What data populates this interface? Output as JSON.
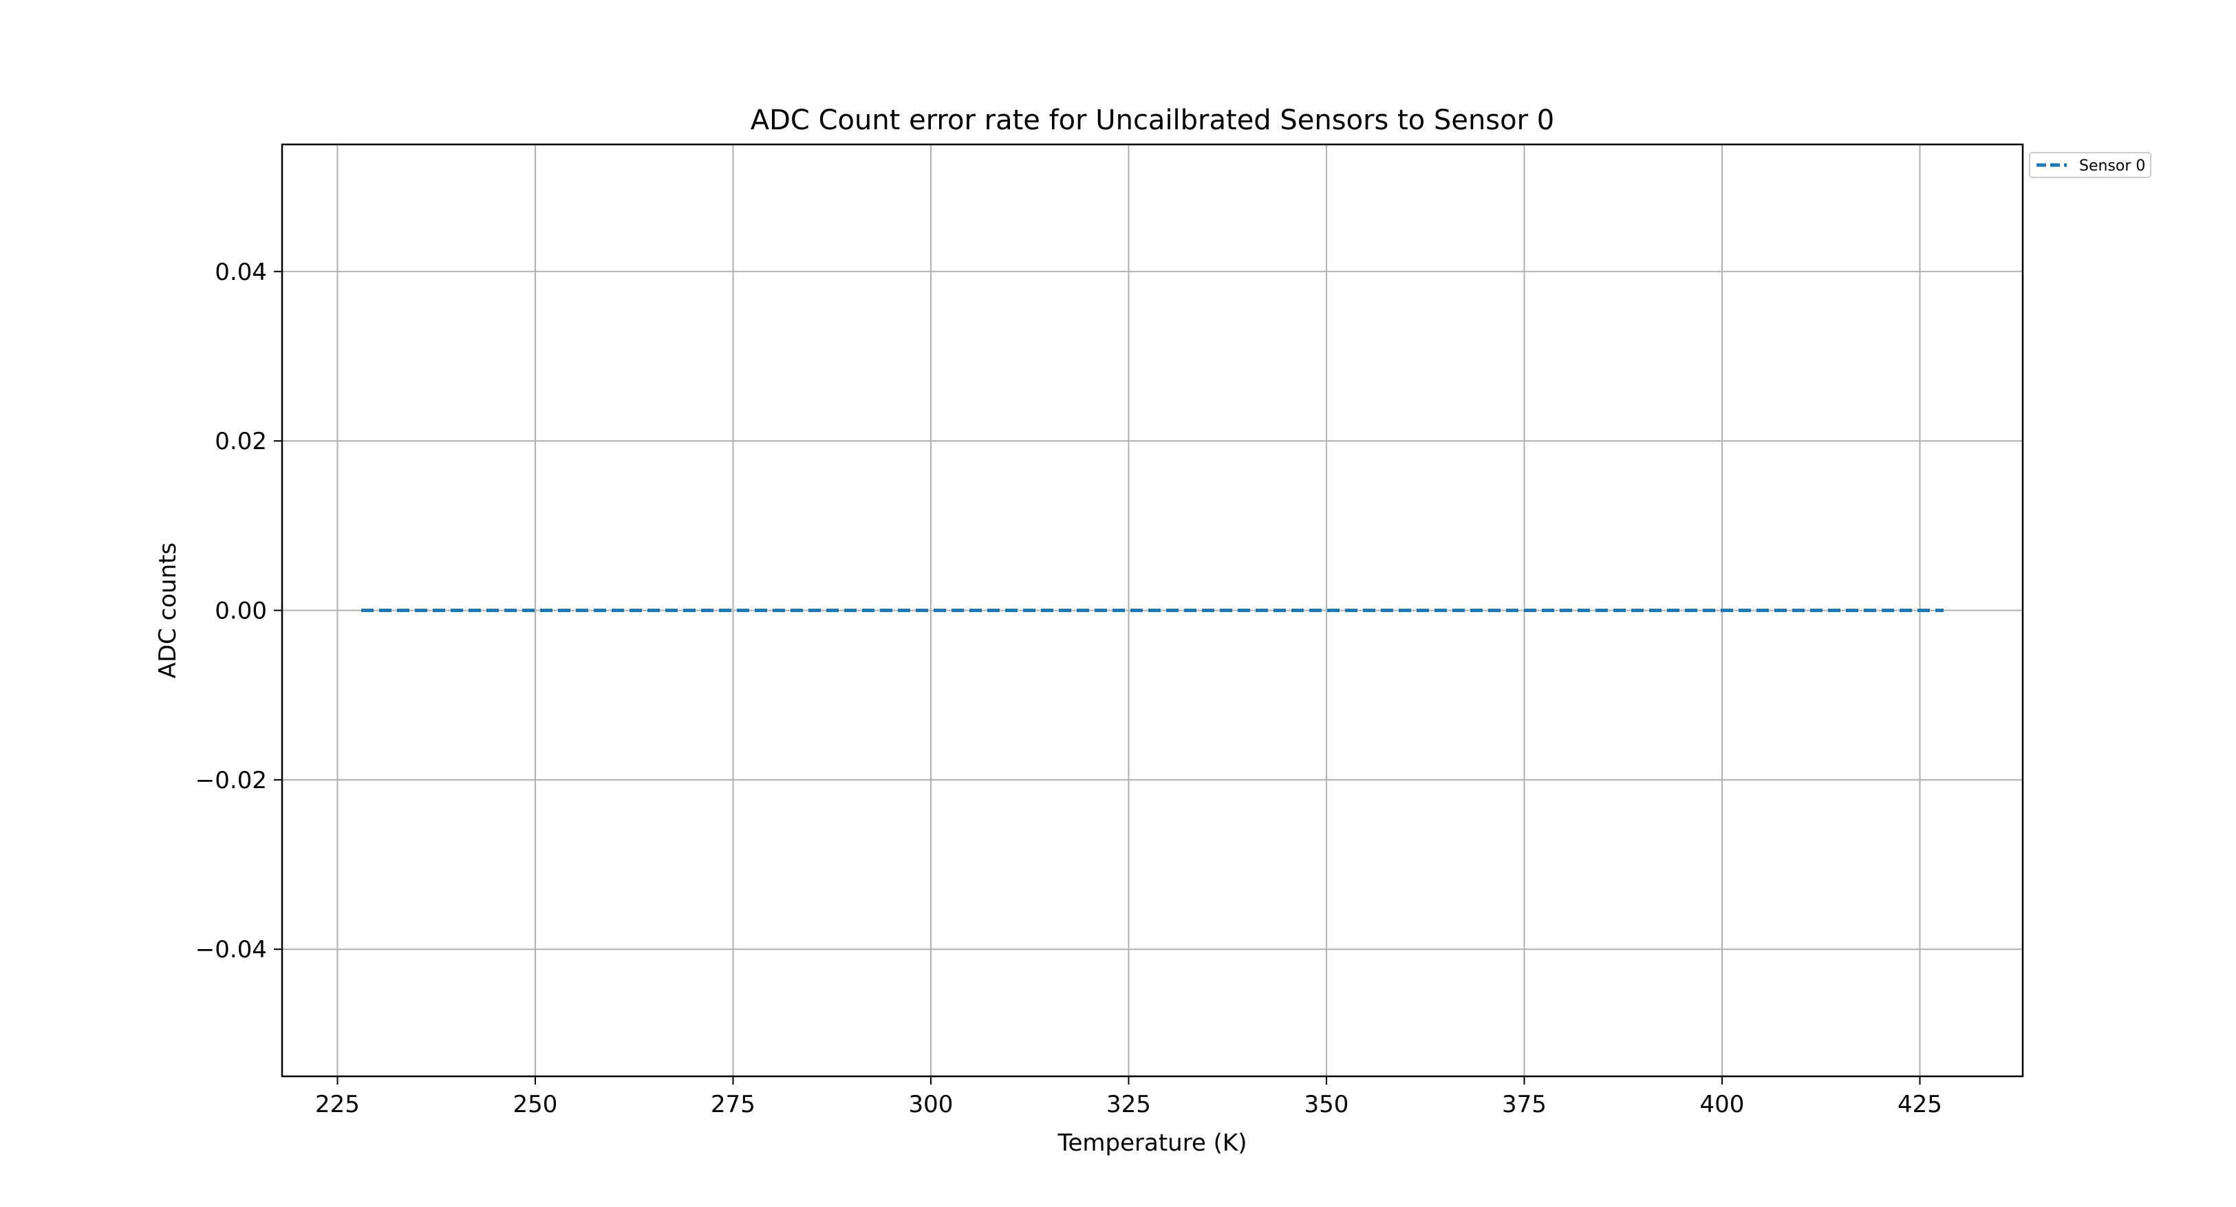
{
  "chart_data": {
    "type": "line",
    "title": "ADC Count error rate for Uncailbrated Sensors to Sensor 0",
    "xlabel": "Temperature (K)",
    "ylabel": "ADC counts",
    "xlim": [
      218,
      438
    ],
    "ylim": [
      -0.055,
      0.055
    ],
    "xticks": [
      225,
      250,
      275,
      300,
      325,
      350,
      375,
      400,
      425
    ],
    "xtick_labels": [
      "225",
      "250",
      "275",
      "300",
      "325",
      "350",
      "375",
      "400",
      "425"
    ],
    "yticks": [
      -0.04,
      -0.02,
      0.0,
      0.02,
      0.04
    ],
    "ytick_labels": [
      "−0.04",
      "−0.02",
      "0.00",
      "0.02",
      "0.04"
    ],
    "grid": true,
    "legend_position": "outside-top-right",
    "series": [
      {
        "name": "Sensor 0",
        "color": "#1f77b4",
        "line_style": "dashed",
        "x": [
          228,
          253,
          278,
          303,
          328,
          353,
          378,
          403,
          428
        ],
        "y": [
          0,
          0,
          0,
          0,
          0,
          0,
          0,
          0,
          0
        ]
      }
    ]
  }
}
